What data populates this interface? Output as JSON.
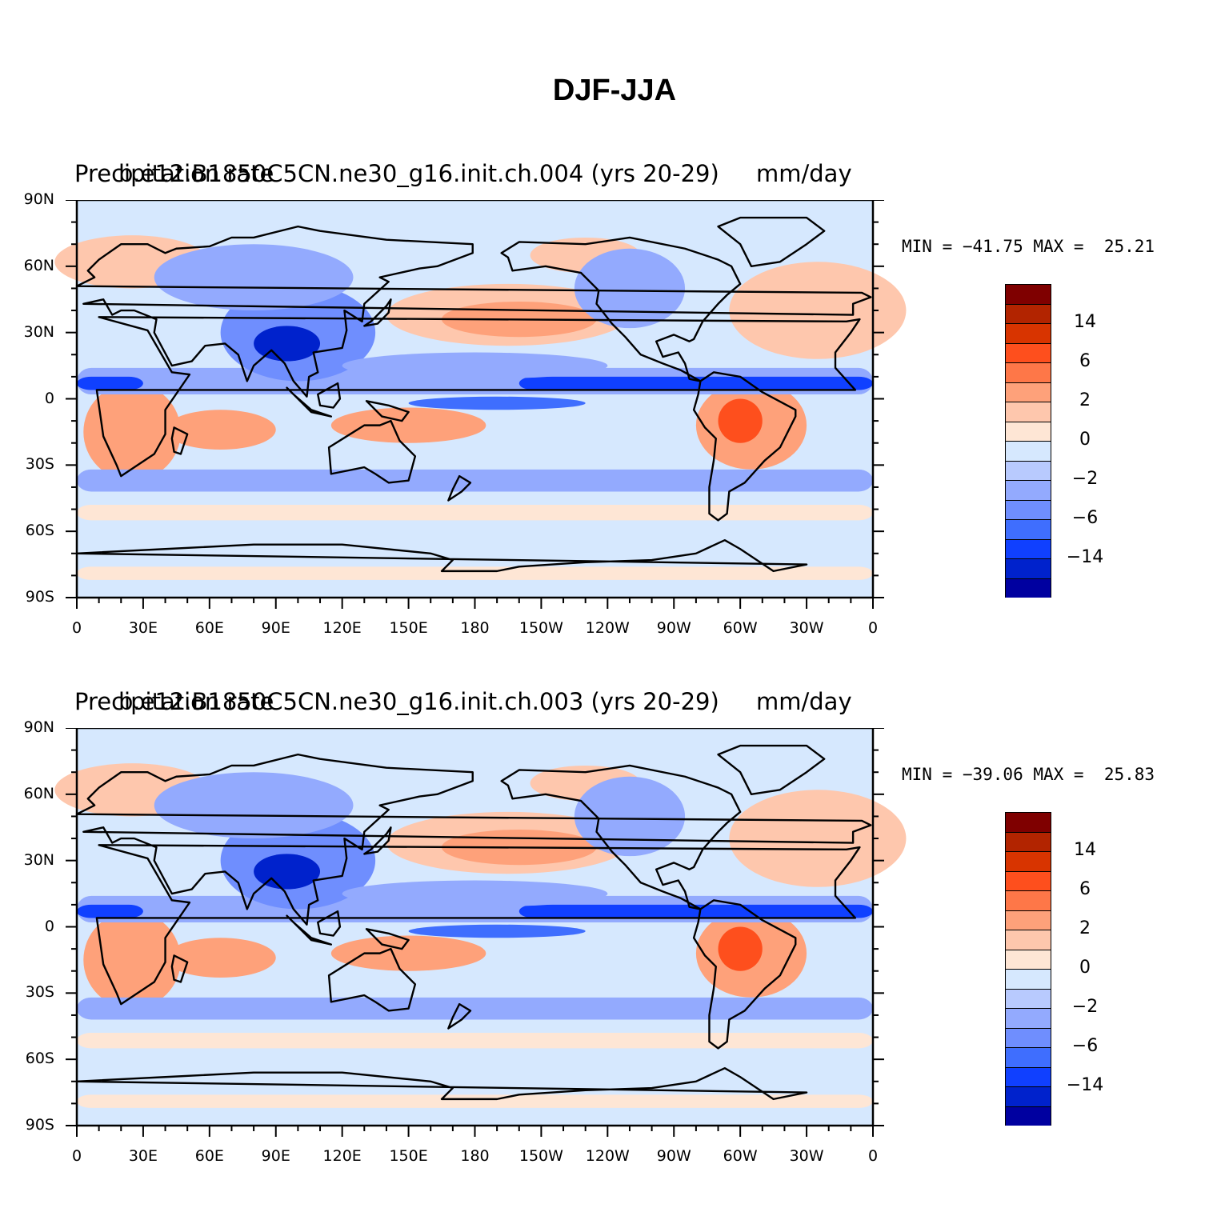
{
  "title": "DJF-JJA",
  "colorbar": {
    "colors": [
      "#7f0000",
      "#b22400",
      "#d83400",
      "#fe4f1d",
      "#fe7748",
      "#fea17a",
      "#fec7ad",
      "#fee6d5",
      "#d6e8fe",
      "#b8cafe",
      "#93aafe",
      "#6f8efe",
      "#3f6efe",
      "#1040ff",
      "#0022cc",
      "#0000a0"
    ],
    "labels": [
      "14",
      "6",
      "2",
      "0",
      "−2",
      "−6",
      "−14"
    ]
  },
  "lat_ticks": [
    "90N",
    "60N",
    "30N",
    "0",
    "30S",
    "60S",
    "90S"
  ],
  "lon_ticks": [
    "0",
    "30E",
    "60E",
    "90E",
    "120E",
    "150E",
    "180",
    "150W",
    "120W",
    "90W",
    "60W",
    "30W",
    "0"
  ],
  "panels": [
    {
      "left_title": "Precipitation rate",
      "center_title": "b.e12.B1850C5CN.ne30_g16.init.ch.004 (yrs 20-29)",
      "right_title": "mm/day",
      "min": "−41.75",
      "max": "25.21",
      "minmax_text": "MIN = −41.75 MAX =  25.21"
    },
    {
      "left_title": "Precipitation rate",
      "center_title": "b.e12.B1850C5CN.ne30_g16.init.ch.003 (yrs 20-29)",
      "right_title": "mm/day",
      "min": "−39.06",
      "max": "25.83",
      "minmax_text": "MIN = −39.06 MAX =  25.83"
    }
  ]
}
